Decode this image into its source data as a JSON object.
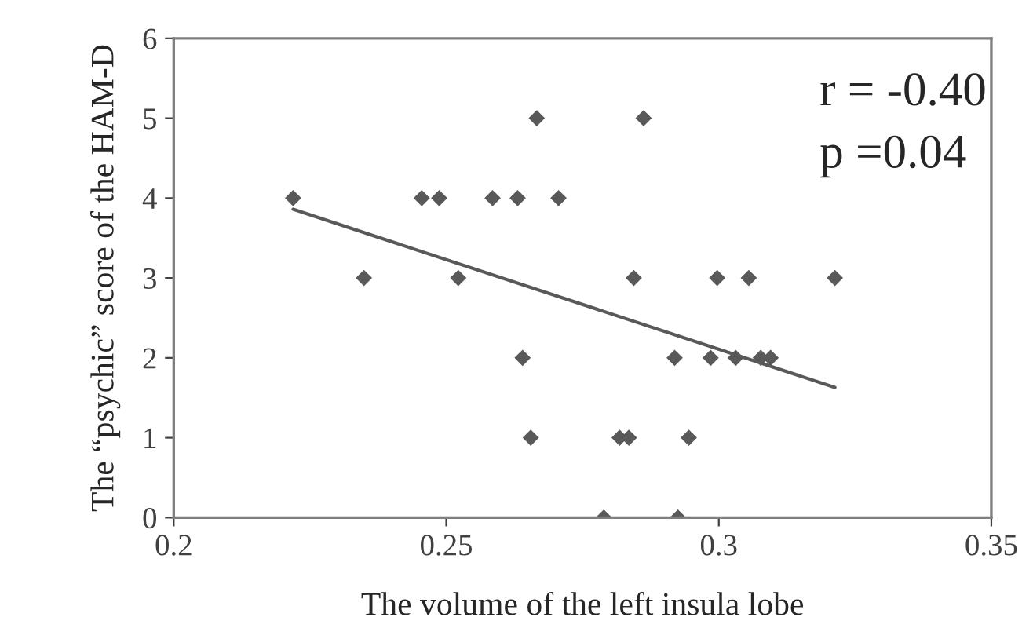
{
  "chart_data": {
    "type": "scatter",
    "xlabel": "The volume of the left insula lobe",
    "ylabel": "The “psychic” score of the HAM-D",
    "annotations": [
      "r = -0.40",
      "p =0.04"
    ],
    "xlim": [
      0.2,
      0.35
    ],
    "xticks": [
      0.2,
      0.25,
      0.3,
      0.35
    ],
    "ylim": [
      0,
      6
    ],
    "yticks": [
      0,
      1,
      2,
      3,
      4,
      5,
      6
    ],
    "grid": false,
    "marker": "diamond",
    "series": [
      {
        "color": "#595959",
        "x": [
          0.2219,
          0.2455,
          0.2487,
          0.2585,
          0.2631,
          0.2706,
          0.2666,
          0.2862,
          0.2349,
          0.2522,
          0.2844,
          0.2997,
          0.3055,
          0.3213,
          0.264,
          0.2919,
          0.2985,
          0.3031,
          0.3077,
          0.3095,
          0.2655,
          0.2818,
          0.2835,
          0.2945,
          0.2789,
          0.2925
        ],
        "values": [
          4,
          4,
          4,
          4,
          4,
          4,
          5,
          5,
          3,
          3,
          3,
          3,
          3,
          3,
          2,
          2,
          2,
          2,
          2,
          2,
          1,
          1,
          1,
          1,
          0,
          0
        ]
      },
      {
        "type": "line",
        "marker": "none",
        "color": "#595959",
        "x": [
          0.2219,
          0.3213
        ],
        "values": [
          3.86,
          1.63
        ]
      }
    ]
  }
}
